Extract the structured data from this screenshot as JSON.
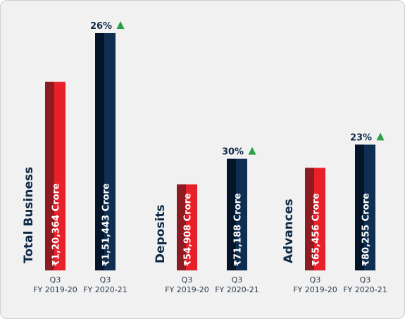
{
  "chart_data": {
    "type": "bar",
    "unit": "Crore",
    "currency_symbol": "₹",
    "categories": [
      {
        "line1": "Q3",
        "line2": "FY 2019-20"
      },
      {
        "line1": "Q3",
        "line2": "FY 2020-21"
      }
    ],
    "groups": [
      {
        "name": "Total Business",
        "bars": [
          {
            "label": "₹1,20,364 Crore",
            "value": 120364
          },
          {
            "label": "₹1,51,443 Crore",
            "value": 151443
          }
        ],
        "growth": "26%"
      },
      {
        "name": "Deposits",
        "bars": [
          {
            "label": "₹54,908 Crore",
            "value": 54908
          },
          {
            "label": "₹71,188 Crore",
            "value": 71188
          }
        ],
        "growth": "30%"
      },
      {
        "name": "Advances",
        "bars": [
          {
            "label": "₹65,456 Crore",
            "value": 65456
          },
          {
            "label": "₹80,255 Crore",
            "value": 80255
          }
        ],
        "growth": "23%"
      }
    ],
    "growth_icon": "up-triangle-icon",
    "colors": {
      "prior_front": "#e8202a",
      "prior_side": "#8e1a22",
      "current_front": "#0f2f52",
      "current_side": "#04152a",
      "growth_arrow": "#27a243"
    }
  }
}
